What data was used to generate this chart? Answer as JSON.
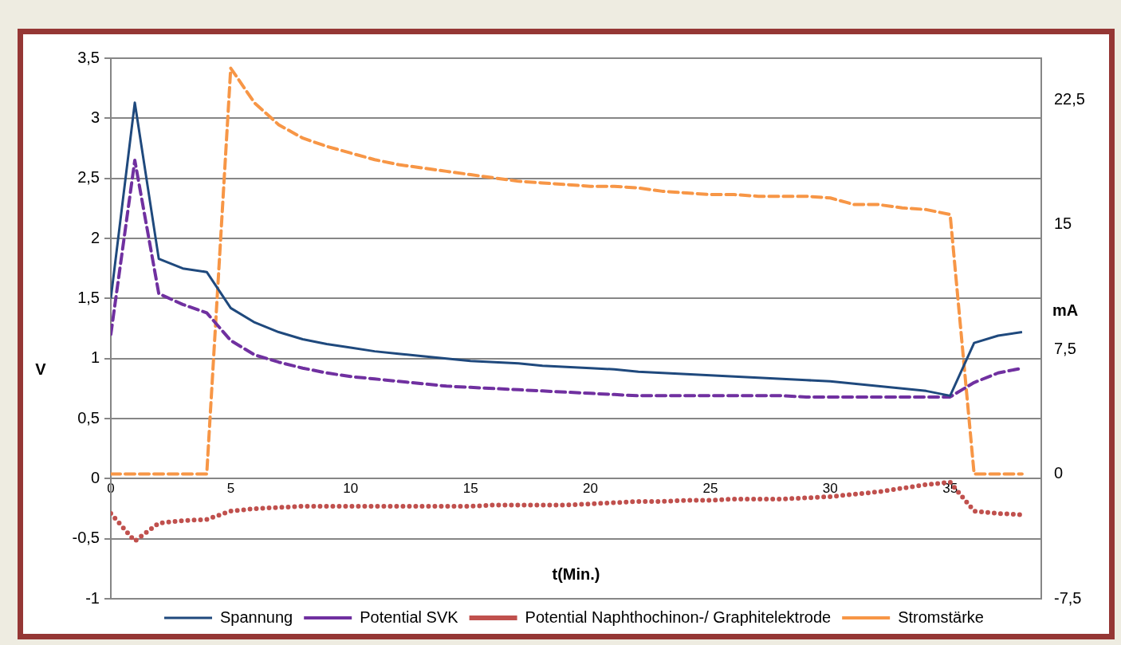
{
  "chart_data": {
    "type": "line",
    "xlabel": "t(Min.)",
    "ylabel": "V",
    "y2label": "mA",
    "x": [
      0,
      1,
      2,
      3,
      4,
      5,
      6,
      7,
      8,
      9,
      10,
      11,
      12,
      13,
      14,
      15,
      16,
      17,
      18,
      19,
      20,
      21,
      22,
      23,
      24,
      25,
      26,
      27,
      28,
      29,
      30,
      31,
      32,
      33,
      34,
      35,
      36,
      37,
      38
    ],
    "series": [
      {
        "name": "Spannung",
        "color": "#1f497d",
        "line_style": "solid",
        "values": [
          1.5,
          3.13,
          1.83,
          1.75,
          1.72,
          1.42,
          1.3,
          1.22,
          1.16,
          1.12,
          1.09,
          1.06,
          1.04,
          1.02,
          1.0,
          0.98,
          0.97,
          0.96,
          0.94,
          0.93,
          0.92,
          0.91,
          0.89,
          0.88,
          0.87,
          0.86,
          0.85,
          0.84,
          0.83,
          0.82,
          0.81,
          0.79,
          0.77,
          0.75,
          0.73,
          0.69,
          1.13,
          1.19,
          1.22
        ]
      },
      {
        "name": "Potential SVK",
        "color": "#7030a0",
        "line_style": "dashed",
        "values": [
          1.2,
          2.65,
          1.54,
          1.45,
          1.38,
          1.15,
          1.03,
          0.97,
          0.92,
          0.88,
          0.85,
          0.83,
          0.81,
          0.79,
          0.77,
          0.76,
          0.75,
          0.74,
          0.73,
          0.72,
          0.71,
          0.7,
          0.69,
          0.69,
          0.69,
          0.69,
          0.69,
          0.69,
          0.69,
          0.68,
          0.68,
          0.68,
          0.68,
          0.68,
          0.68,
          0.68,
          0.8,
          0.88,
          0.92
        ]
      },
      {
        "name": "Potential Naphthochinon-/ Graphitelektrode",
        "color": "#c0504d",
        "line_style": "dotted",
        "values": [
          -0.29,
          -0.52,
          -0.37,
          -0.35,
          -0.34,
          -0.27,
          -0.25,
          -0.24,
          -0.23,
          -0.23,
          -0.23,
          -0.23,
          -0.23,
          -0.23,
          -0.23,
          -0.23,
          -0.22,
          -0.22,
          -0.22,
          -0.22,
          -0.21,
          -0.2,
          -0.19,
          -0.19,
          -0.18,
          -0.18,
          -0.17,
          -0.17,
          -0.17,
          -0.16,
          -0.15,
          -0.13,
          -0.11,
          -0.08,
          -0.05,
          -0.03,
          -0.27,
          -0.29,
          -0.3
        ]
      },
      {
        "name": "Stromstärke",
        "color": "#f79646",
        "line_style": "dashed",
        "axis": "y2",
        "values": [
          0,
          0,
          0,
          0,
          0,
          24.4,
          22.3,
          21.0,
          20.2,
          19.7,
          19.3,
          18.9,
          18.6,
          18.4,
          18.2,
          18.0,
          17.8,
          17.6,
          17.5,
          17.4,
          17.3,
          17.3,
          17.2,
          17.0,
          16.9,
          16.8,
          16.8,
          16.7,
          16.7,
          16.7,
          16.6,
          16.2,
          16.2,
          16.0,
          15.9,
          15.6,
          0,
          0,
          0
        ]
      }
    ],
    "xlim": [
      0,
      38.8
    ],
    "xticks": [
      0,
      5,
      10,
      15,
      20,
      25,
      30,
      35
    ],
    "ylim": [
      -1,
      3.5
    ],
    "yticks": [
      {
        "value": -1,
        "label": "-1"
      },
      {
        "value": -0.5,
        "label": "-0,5"
      },
      0,
      {
        "value": 0.5,
        "label": "0,5"
      },
      1,
      {
        "value": 1.5,
        "label": "1,5"
      },
      2,
      {
        "value": 2.5,
        "label": "2,5"
      },
      3,
      {
        "value": 3.5,
        "label": "3,5"
      }
    ],
    "y2lim": [
      -7.5,
      25
    ],
    "y2ticks": [
      {
        "value": -7.5,
        "label": "-7,5"
      },
      0,
      {
        "value": 7.5,
        "label": "7,5"
      },
      15,
      {
        "value": 22.5,
        "label": "22,5"
      }
    ],
    "grid": "y",
    "legend": "bottom",
    "marker": "none"
  }
}
